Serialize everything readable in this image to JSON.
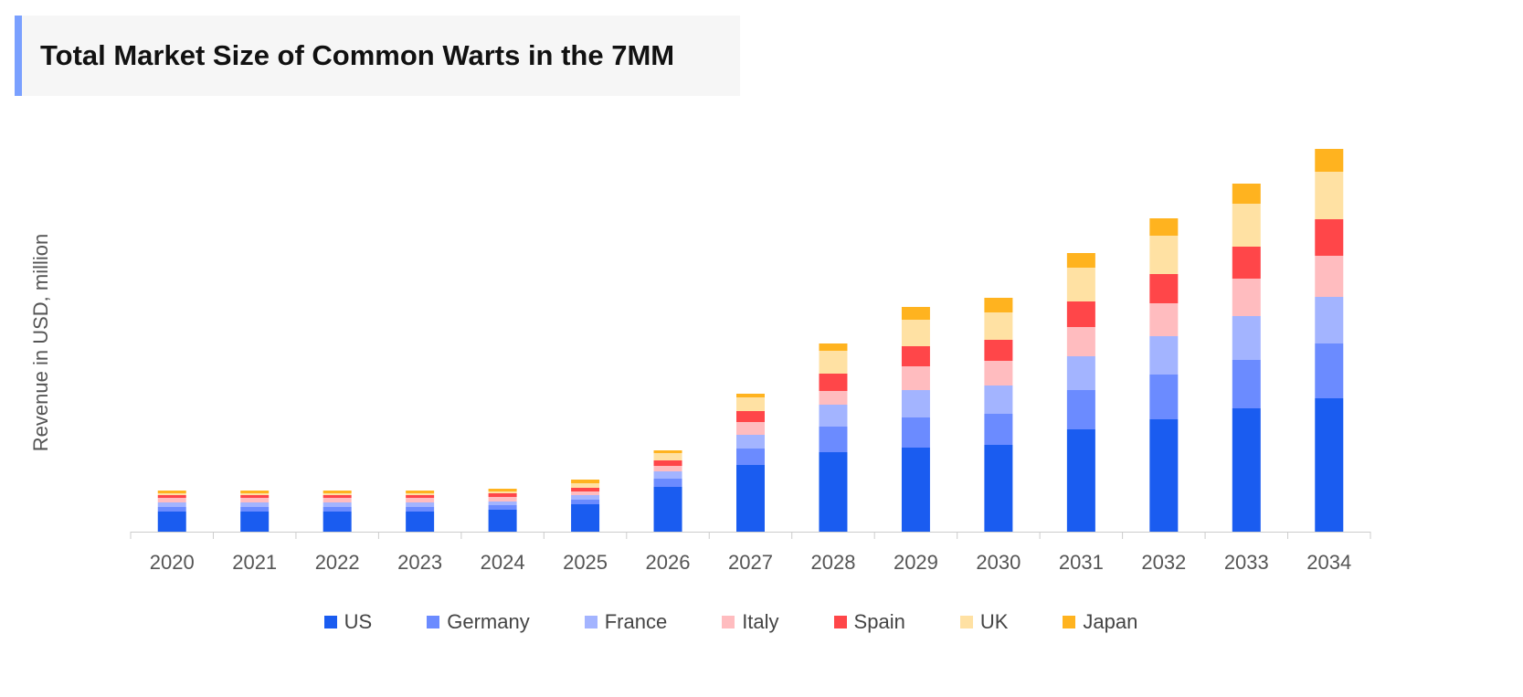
{
  "title": "Total Market Size of Common Warts in the 7MM",
  "accent_color": "#7aa0ff",
  "chart_data": {
    "type": "bar",
    "stacked": true,
    "title": "Total Market Size of Common Warts in the 7MM",
    "xlabel": "",
    "ylabel": "Revenue in USD, million",
    "note": "no y-axis tick labels printed; values are relative estimates",
    "ylim": [
      0,
      440
    ],
    "grid": false,
    "legend_position": "bottom",
    "categories": [
      "2020",
      "2021",
      "2022",
      "2023",
      "2024",
      "2025",
      "2026",
      "2027",
      "2028",
      "2029",
      "2030",
      "2031",
      "2032",
      "2033",
      "2034"
    ],
    "series": [
      {
        "name": "US",
        "color": "#1a5cf0",
        "values": [
          22,
          22,
          22,
          22,
          24,
          30,
          49,
          73,
          87,
          92,
          95,
          112,
          123,
          135,
          146
        ]
      },
      {
        "name": "Germany",
        "color": "#6b8bff",
        "values": [
          5,
          5,
          5,
          5,
          5,
          5,
          9,
          18,
          28,
          33,
          34,
          43,
          49,
          53,
          60
        ]
      },
      {
        "name": "France",
        "color": "#a3b4ff",
        "values": [
          5,
          5,
          5,
          5,
          4,
          5,
          8,
          15,
          24,
          30,
          31,
          37,
          42,
          48,
          51
        ]
      },
      {
        "name": "Italy",
        "color": "#ffbcbf",
        "values": [
          5,
          5,
          5,
          5,
          5,
          4,
          6,
          14,
          15,
          26,
          27,
          32,
          36,
          41,
          45
        ]
      },
      {
        "name": "Spain",
        "color": "#ff4649",
        "values": [
          3,
          3,
          3,
          3,
          4,
          4,
          6,
          12,
          19,
          22,
          23,
          28,
          32,
          35,
          40
        ]
      },
      {
        "name": "UK",
        "color": "#ffe1a3",
        "values": [
          2,
          2,
          2,
          2,
          2,
          5,
          8,
          15,
          25,
          29,
          30,
          37,
          42,
          47,
          52
        ]
      },
      {
        "name": "Japan",
        "color": "#ffb31f",
        "values": [
          3,
          3,
          3,
          3,
          3,
          4,
          3,
          4,
          8,
          14,
          16,
          16,
          19,
          22,
          25
        ]
      }
    ]
  }
}
